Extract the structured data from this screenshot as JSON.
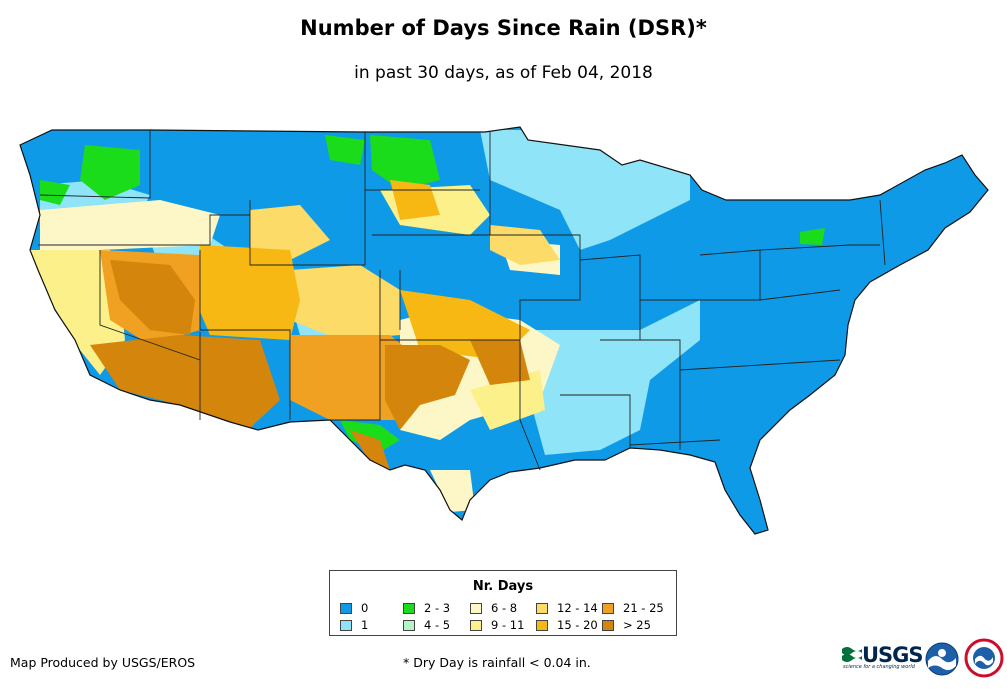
{
  "title": "Number of Days Since Rain (DSR)*",
  "subtitle": "in past 30 days, as of Feb 04, 2018",
  "legend": {
    "title": "Nr. Days",
    "items": [
      {
        "label": "0",
        "color": "#0f9ae8"
      },
      {
        "label": "1",
        "color": "#8fe4f8"
      },
      {
        "label": "2 - 3",
        "color": "#1adc1a"
      },
      {
        "label": "4 - 5",
        "color": "#b4f5c4"
      },
      {
        "label": "6 - 8",
        "color": "#fdf7c8"
      },
      {
        "label": "9 - 11",
        "color": "#fbf08a"
      },
      {
        "label": "12 - 14",
        "color": "#fcdb68"
      },
      {
        "label": "15 - 20",
        "color": "#f7b813"
      },
      {
        "label": "21 - 25",
        "color": "#f0a121"
      },
      {
        "label": "> 25",
        "color": "#d4850b"
      }
    ]
  },
  "footer": {
    "producer": "Map Produced by USGS/EROS",
    "note": "* Dry Day is rainfall < 0.04 in."
  },
  "logos": {
    "usgs": "USGS",
    "usgs_tagline": "science for a changing world",
    "noaa_icon": "noaa-logo-icon",
    "nws_icon": "nws-logo-icon"
  }
}
